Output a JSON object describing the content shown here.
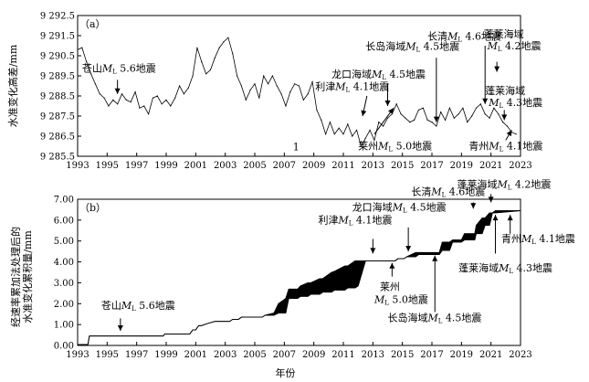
{
  "chart_data": [
    {
      "type": "line",
      "panel_label": "（a）",
      "ylabel": "水准变化高差/mm",
      "xlim": [
        1993,
        2023
      ],
      "ylim": [
        9285.5,
        9292.5
      ],
      "x_ticks": [
        1993,
        1995,
        1997,
        1999,
        2001,
        2003,
        2005,
        2007,
        2009,
        2011,
        2013,
        2015,
        2017,
        2019,
        2021,
        2023
      ],
      "y_ticks": [
        9285.5,
        9286.5,
        9287.5,
        9288.5,
        9289.5,
        9290.5,
        9291.5,
        9292.5
      ],
      "y_tick_labels": [
        "9 285.5",
        "9 286.5",
        "9 287.5",
        "9 288.5",
        "9 289.5",
        "9 290.5",
        "9 291.5",
        "9 292.5"
      ],
      "marker_label": "1",
      "series": [
        {
          "x": [
            1993.0,
            1993.3,
            1993.6,
            1993.9,
            1994.2,
            1994.5,
            1994.8,
            1995.1,
            1995.4,
            1995.7,
            1996.0,
            1996.3,
            1996.6,
            1996.9,
            1997.2,
            1997.5,
            1997.8,
            1998.1,
            1998.4,
            1998.7,
            1999.0,
            1999.3,
            1999.6,
            1999.9,
            2000.2,
            2000.5,
            2000.8,
            2001.1,
            2001.4,
            2001.7,
            2002.0,
            2002.3,
            2002.6,
            2002.9,
            2003.2,
            2003.5,
            2003.8,
            2004.1,
            2004.4,
            2004.7,
            2005.0,
            2005.3,
            2005.6,
            2005.9,
            2006.2,
            2006.5,
            2006.8,
            2007.1,
            2007.4,
            2007.7,
            2008.0,
            2008.3,
            2008.6,
            2008.9,
            2009.2,
            2009.5,
            2009.8,
            2010.1,
            2010.4,
            2010.7,
            2011.0,
            2011.3,
            2011.6,
            2011.9,
            2012.2,
            2012.5,
            2012.8,
            2013.1,
            2013.4,
            2013.7,
            2014.0,
            2014.3,
            2014.6,
            2014.9,
            2015.2,
            2015.5,
            2015.8,
            2016.1,
            2016.4,
            2016.7,
            2017.0,
            2017.3,
            2017.6,
            2017.9,
            2018.2,
            2018.5,
            2018.8,
            2019.1,
            2019.4,
            2019.7,
            2020.0,
            2020.3,
            2020.6,
            2020.9,
            2021.2,
            2021.5,
            2021.8,
            2022.1,
            2022.4,
            2022.7
          ],
          "y": [
            9290.8,
            9290.9,
            9290.2,
            9289.6,
            9289.1,
            9288.6,
            9288.4,
            9288.0,
            9288.3,
            9288.1,
            9288.6,
            9288.3,
            9288.2,
            9288.7,
            9287.9,
            9288.0,
            9287.6,
            9288.4,
            9288.5,
            9288.1,
            9288.3,
            9288.0,
            9288.4,
            9289.0,
            9288.6,
            9288.9,
            9289.5,
            9290.9,
            9290.2,
            9289.6,
            9289.8,
            9290.4,
            9290.9,
            9291.2,
            9291.4,
            9290.6,
            9289.5,
            9289.0,
            9288.3,
            9288.8,
            9289.1,
            9288.4,
            9289.5,
            9289.1,
            9289.5,
            9289.0,
            9288.6,
            9288.0,
            9288.7,
            9289.1,
            9289.0,
            9288.3,
            9288.6,
            9289.2,
            9287.8,
            9287.3,
            9286.6,
            9287.2,
            9286.6,
            9286.9,
            9286.6,
            9287.1,
            9286.5,
            9286.8,
            9286.0,
            9286.4,
            9286.8,
            9286.3,
            9287.2,
            9287.0,
            9287.4,
            9287.6,
            9288.1,
            9287.6,
            9287.4,
            9287.2,
            9287.3,
            9287.8,
            9287.9,
            9287.3,
            9287.2,
            9287.0,
            9287.7,
            9287.3,
            9287.9,
            9287.4,
            9287.6,
            9287.9,
            9287.2,
            9287.5,
            9287.9,
            9288.1,
            9287.6,
            9287.4,
            9287.9,
            9287.6,
            9287.2,
            9287.0,
            9286.7,
            9286.6
          ]
        }
      ],
      "annotations": [
        {
          "text": "苍山",
          "mag": "5.6",
          "suffix": "地震",
          "x": 1995.7,
          "y": 9288.6
        },
        {
          "text": "利津",
          "mag": "4.1",
          "suffix": "地震",
          "x": 2012.4,
          "y": 9287.3
        },
        {
          "text": "龙口海域",
          "mag": "4.5",
          "suffix": "地震",
          "x": 2014.0,
          "y": 9287.9
        },
        {
          "text": "长岛海域",
          "mag": "4.5",
          "suffix": "地震",
          "x": 2017.3,
          "y": 9287.1
        },
        {
          "text": "长清",
          "mag": "4.6",
          "suffix": "地震",
          "x": 2020.5,
          "y": 9288.0
        },
        {
          "text": "蓬莱海域",
          "mag": "4.2",
          "suffix": "地震",
          "x": 2021.4,
          "y": 9289.6
        },
        {
          "text": "蓬莱海域",
          "mag": "4.3",
          "suffix": "地震",
          "x": 2021.9,
          "y": 9287.3
        },
        {
          "text": "莱州",
          "mag": "5.0",
          "suffix": "地震",
          "x": 2012.9,
          "y": 9286.5
        },
        {
          "text": "青州",
          "mag": "4.1",
          "suffix": "地震",
          "x": 2022.2,
          "y": 9286.5
        }
      ]
    },
    {
      "type": "area",
      "panel_label": "（b）",
      "ylabel_lines": [
        "经速率累加法处理后的",
        "水准变化累积量/mm"
      ],
      "xlabel": "年份",
      "xlim": [
        1993,
        2023
      ],
      "ylim": [
        0,
        7
      ],
      "x_ticks": [
        1993,
        1995,
        1997,
        1999,
        2001,
        2003,
        2005,
        2007,
        2009,
        2011,
        2013,
        2015,
        2017,
        2019,
        2021,
        2023
      ],
      "y_ticks": [
        0,
        1,
        2,
        3,
        4,
        5,
        6,
        7
      ],
      "y_tick_labels": [
        "0.00",
        "1.00",
        "2.00",
        "3.00",
        "4.00",
        "5.00",
        "6.00",
        "7.00"
      ],
      "series": [
        {
          "x": [
            1993.0,
            1993.7,
            1993.8,
            1996.0,
            1998.8,
            1998.9,
            2000.6,
            2000.8,
            2001.0,
            2001.2,
            2001.4,
            2001.8,
            2002.3,
            2003.3,
            2003.5,
            2003.9,
            2004.1,
            2005.5,
            2005.7,
            2006.3,
            2006.6,
            2007.1,
            2007.3,
            2007.9,
            2008.1,
            2008.6,
            2008.8,
            2009.4,
            2009.6,
            2010.2,
            2010.4,
            2011.1,
            2011.3,
            2011.8,
            2012.0,
            2012.5,
            2014.5,
            2014.7,
            2015.1,
            2015.3,
            2015.9,
            2016.1,
            2017.5,
            2017.7,
            2018.2,
            2018.4,
            2019.0,
            2019.2,
            2019.9,
            2020.0,
            2020.4,
            2020.6,
            2020.9,
            2021.1,
            2021.3,
            2023.0
          ],
          "low": [
            0.05,
            0.05,
            0.45,
            0.45,
            0.45,
            0.55,
            0.55,
            0.75,
            0.75,
            0.95,
            0.95,
            1.05,
            1.15,
            1.15,
            1.25,
            1.25,
            1.35,
            1.35,
            1.45,
            1.45,
            1.55,
            1.55,
            2.25,
            2.25,
            2.35,
            2.35,
            2.45,
            2.45,
            2.55,
            2.55,
            2.65,
            2.65,
            2.75,
            2.75,
            2.85,
            4.05,
            4.05,
            4.15,
            4.15,
            4.25,
            4.25,
            4.35,
            4.35,
            4.55,
            4.55,
            4.95,
            4.95,
            5.05,
            5.05,
            5.35,
            5.35,
            5.75,
            5.75,
            6.35,
            6.35,
            6.45
          ],
          "high": [
            0.05,
            0.05,
            0.45,
            0.45,
            0.45,
            0.55,
            0.55,
            0.75,
            0.75,
            0.95,
            0.95,
            1.05,
            1.15,
            1.15,
            1.25,
            1.25,
            1.35,
            1.35,
            1.45,
            1.55,
            2.0,
            2.25,
            2.7,
            2.7,
            2.85,
            3.0,
            3.0,
            3.2,
            3.2,
            3.5,
            3.55,
            3.8,
            3.8,
            4.05,
            4.05,
            4.05,
            4.05,
            4.15,
            4.15,
            4.25,
            4.45,
            4.45,
            4.45,
            4.95,
            4.95,
            5.05,
            5.05,
            5.35,
            5.35,
            5.75,
            6.1,
            6.1,
            6.35,
            6.35,
            6.45,
            6.45
          ]
        }
      ],
      "annotations": [
        {
          "text": "苍山",
          "mag": "5.6",
          "suffix": "地震",
          "x": 1995.9,
          "y": 0.7
        },
        {
          "text": "利津",
          "mag": "4.1",
          "suffix": "地震",
          "x": 2013.0,
          "y": 4.4
        },
        {
          "text": "龙口海域",
          "mag": "4.5",
          "suffix": "地震",
          "x": 2015.4,
          "y": 4.5
        },
        {
          "text": "长清",
          "mag": "4.6",
          "suffix": "地震",
          "x": 2019.8,
          "y": 6.6
        },
        {
          "text": "蓬莱海域",
          "mag": "4.2",
          "suffix": "地震",
          "x": 2021.0,
          "y": 6.9
        },
        {
          "text": "莱州",
          "mag": "5.0",
          "suffix": "地震",
          "x": 2014.3,
          "y": 3.8
        },
        {
          "text": "长岛海域",
          "mag": "4.5",
          "suffix": "地震",
          "x": 2017.2,
          "y": 4.3
        },
        {
          "text": "蓬莱海域",
          "mag": "4.3",
          "suffix": "地震",
          "x": 2021.3,
          "y": 6.2
        },
        {
          "text": "青州",
          "mag": "4.1",
          "suffix": "地震",
          "x": 2022.4,
          "y": 6.2
        }
      ]
    }
  ]
}
